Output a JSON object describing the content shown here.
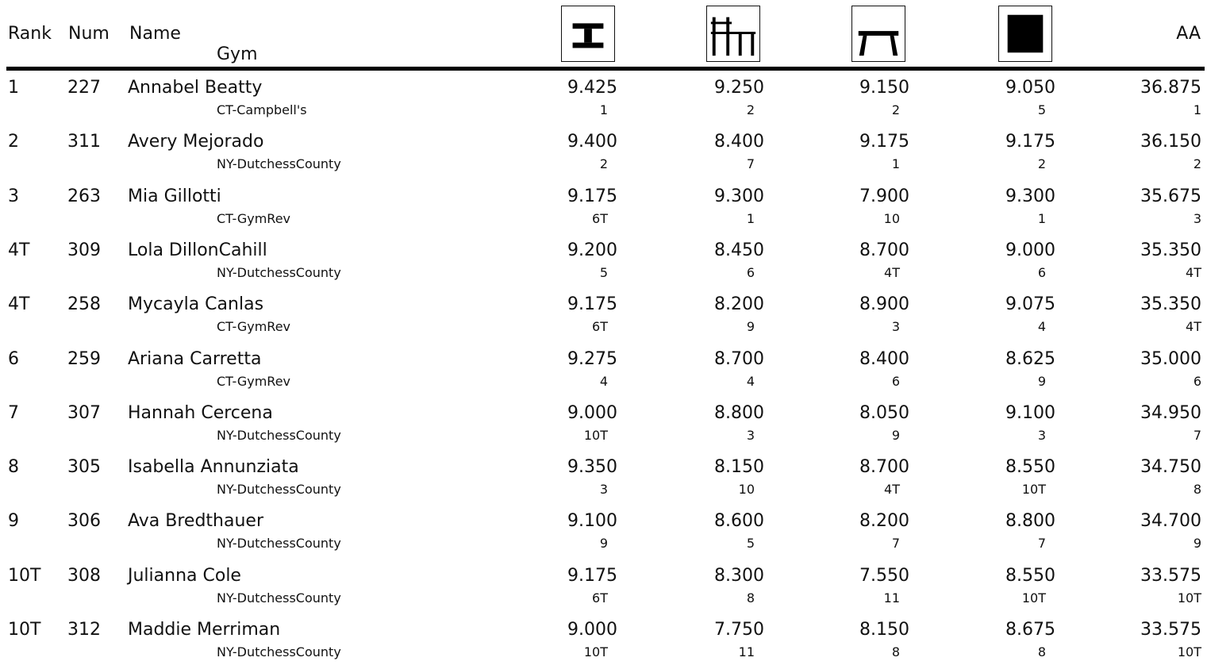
{
  "header": {
    "rank": "Rank",
    "num": "Num",
    "name": "Name",
    "gym": "Gym",
    "aa": "AA",
    "events": [
      {
        "icon": "vault-icon"
      },
      {
        "icon": "uneven-bars-icon"
      },
      {
        "icon": "balance-beam-icon"
      },
      {
        "icon": "floor-exercise-icon"
      }
    ]
  },
  "rows": [
    {
      "rank": "1",
      "num": "227",
      "name": "Annabel Beatty",
      "gym": "CT-Campbell's",
      "scores": [
        "9.425",
        "9.250",
        "9.150",
        "9.050"
      ],
      "places": [
        "1",
        "2",
        "2",
        "5"
      ],
      "aa": "36.875",
      "aa_place": "1"
    },
    {
      "rank": "2",
      "num": "311",
      "name": "Avery Mejorado",
      "gym": "NY-DutchessCounty",
      "scores": [
        "9.400",
        "8.400",
        "9.175",
        "9.175"
      ],
      "places": [
        "2",
        "7",
        "1",
        "2"
      ],
      "aa": "36.150",
      "aa_place": "2"
    },
    {
      "rank": "3",
      "num": "263",
      "name": "Mia Gillotti",
      "gym": "CT-GymRev",
      "scores": [
        "9.175",
        "9.300",
        "7.900",
        "9.300"
      ],
      "places": [
        "6T",
        "1",
        "10",
        "1"
      ],
      "aa": "35.675",
      "aa_place": "3"
    },
    {
      "rank": "4T",
      "num": "309",
      "name": "Lola DillonCahill",
      "gym": "NY-DutchessCounty",
      "scores": [
        "9.200",
        "8.450",
        "8.700",
        "9.000"
      ],
      "places": [
        "5",
        "6",
        "4T",
        "6"
      ],
      "aa": "35.350",
      "aa_place": "4T"
    },
    {
      "rank": "4T",
      "num": "258",
      "name": "Mycayla Canlas",
      "gym": "CT-GymRev",
      "scores": [
        "9.175",
        "8.200",
        "8.900",
        "9.075"
      ],
      "places": [
        "6T",
        "9",
        "3",
        "4"
      ],
      "aa": "35.350",
      "aa_place": "4T"
    },
    {
      "rank": "6",
      "num": "259",
      "name": "Ariana Carretta",
      "gym": "CT-GymRev",
      "scores": [
        "9.275",
        "8.700",
        "8.400",
        "8.625"
      ],
      "places": [
        "4",
        "4",
        "6",
        "9"
      ],
      "aa": "35.000",
      "aa_place": "6"
    },
    {
      "rank": "7",
      "num": "307",
      "name": "Hannah Cercena",
      "gym": "NY-DutchessCounty",
      "scores": [
        "9.000",
        "8.800",
        "8.050",
        "9.100"
      ],
      "places": [
        "10T",
        "3",
        "9",
        "3"
      ],
      "aa": "34.950",
      "aa_place": "7"
    },
    {
      "rank": "8",
      "num": "305",
      "name": "Isabella Annunziata",
      "gym": "NY-DutchessCounty",
      "scores": [
        "9.350",
        "8.150",
        "8.700",
        "8.550"
      ],
      "places": [
        "3",
        "10",
        "4T",
        "10T"
      ],
      "aa": "34.750",
      "aa_place": "8"
    },
    {
      "rank": "9",
      "num": "306",
      "name": "Ava Bredthauer",
      "gym": "NY-DutchessCounty",
      "scores": [
        "9.100",
        "8.600",
        "8.200",
        "8.800"
      ],
      "places": [
        "9",
        "5",
        "7",
        "7"
      ],
      "aa": "34.700",
      "aa_place": "9"
    },
    {
      "rank": "10T",
      "num": "308",
      "name": "Julianna Cole",
      "gym": "NY-DutchessCounty",
      "scores": [
        "9.175",
        "8.300",
        "7.550",
        "8.550"
      ],
      "places": [
        "6T",
        "8",
        "11",
        "10T"
      ],
      "aa": "33.575",
      "aa_place": "10T"
    },
    {
      "rank": "10T",
      "num": "312",
      "name": "Maddie Merriman",
      "gym": "NY-DutchessCounty",
      "scores": [
        "9.000",
        "7.750",
        "8.150",
        "8.675"
      ],
      "places": [
        "10T",
        "11",
        "8",
        "8"
      ],
      "aa": "33.575",
      "aa_place": "10T"
    }
  ]
}
